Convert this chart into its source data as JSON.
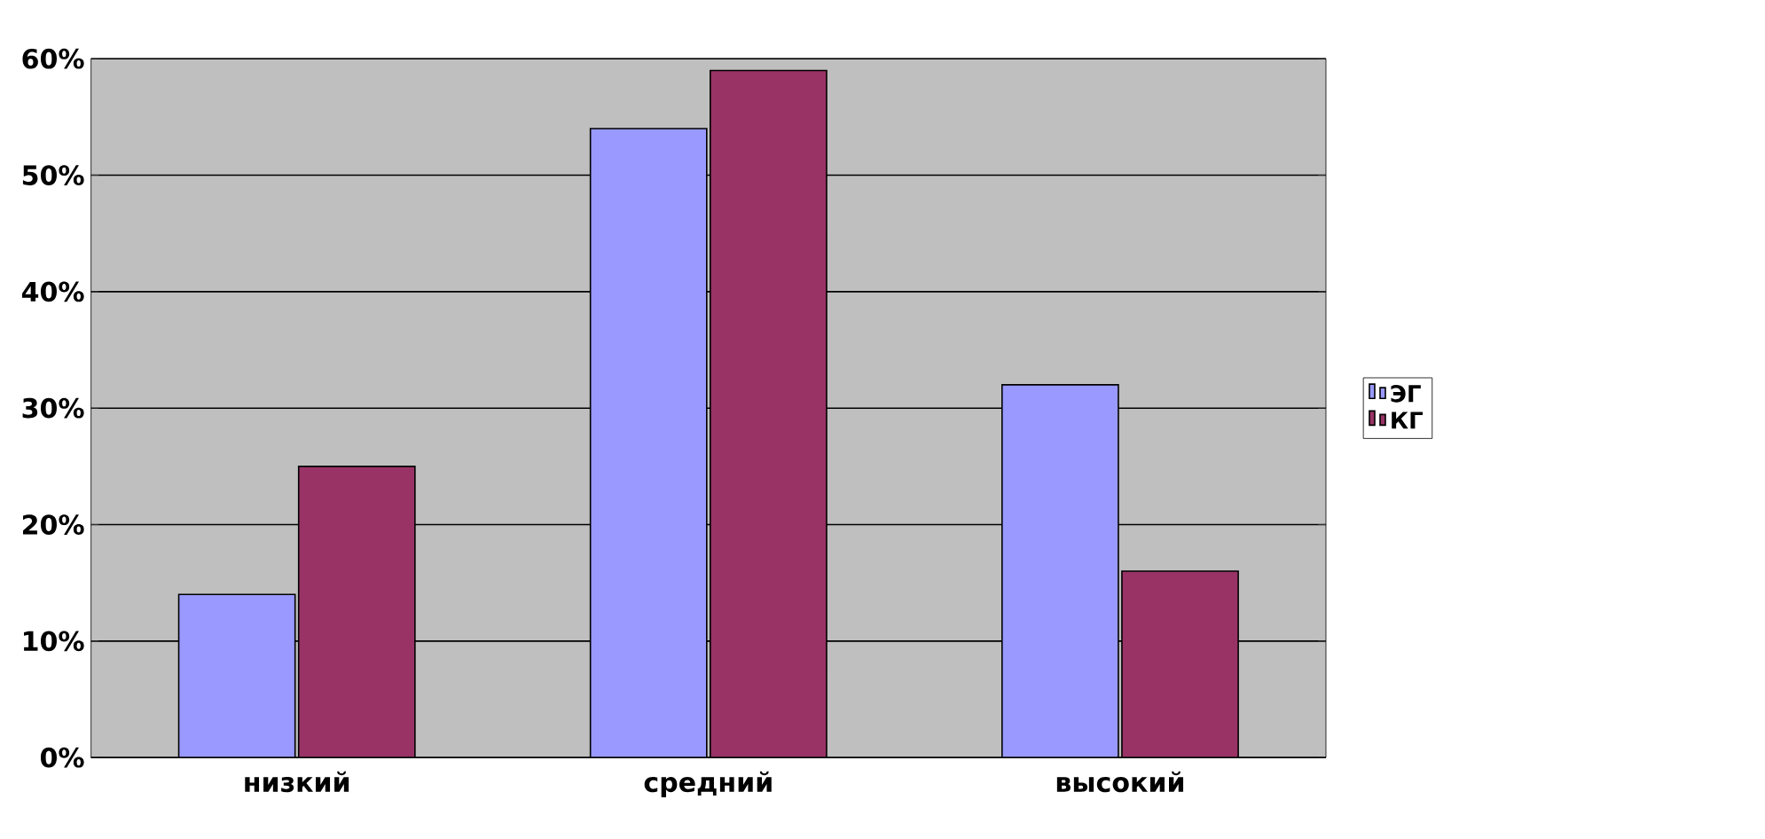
{
  "chart_data": {
    "type": "bar",
    "categories": [
      "низкий",
      "средний",
      "высокий"
    ],
    "series": [
      {
        "name": "ЭГ",
        "color": "#9999ff",
        "values": [
          14,
          54,
          32
        ]
      },
      {
        "name": "КГ",
        "color": "#993366",
        "values": [
          25,
          59,
          16
        ]
      }
    ],
    "ylim": [
      0,
      60
    ],
    "yticks": [
      {
        "value": 0,
        "label": "0%"
      },
      {
        "value": 10,
        "label": "10%"
      },
      {
        "value": 20,
        "label": "20%"
      },
      {
        "value": 30,
        "label": "30%"
      },
      {
        "value": 40,
        "label": "40%"
      },
      {
        "value": 50,
        "label": "50%"
      },
      {
        "value": 60,
        "label": "60%"
      }
    ],
    "grid": "y",
    "legend": "right"
  }
}
